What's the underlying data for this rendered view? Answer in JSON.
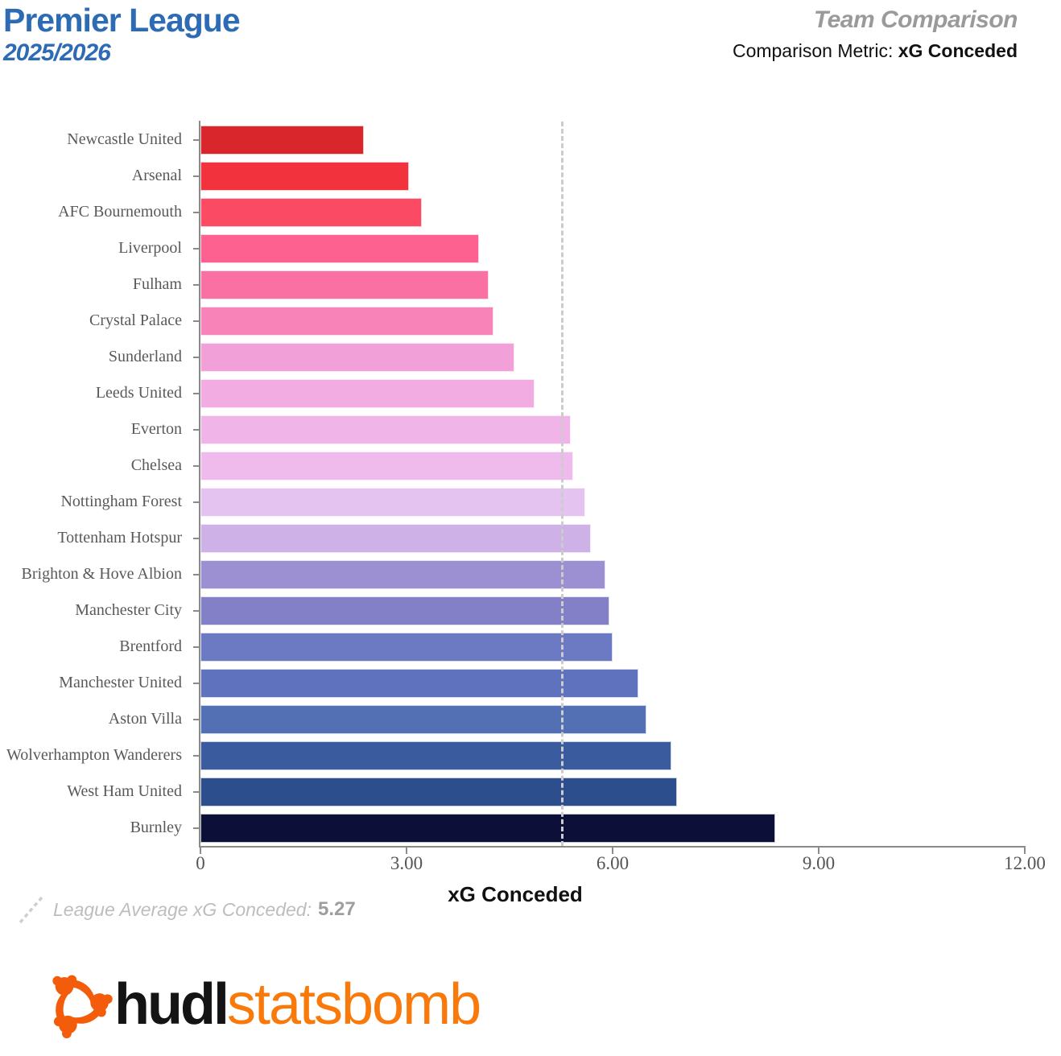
{
  "header": {
    "title": "Premier League",
    "season": "2025/2026",
    "right_title": "Team Comparison",
    "metric_label": "Comparison Metric:",
    "metric_value": "xG Conceded",
    "title_color": "#2D6CB5",
    "right_title_color": "#9A9A9A"
  },
  "chart_data": {
    "type": "bar",
    "orientation": "horizontal",
    "title": "Team Comparison",
    "xlabel": "xG Conceded",
    "xlim": [
      0,
      12
    ],
    "xticks": [
      0,
      3,
      6,
      9,
      12
    ],
    "xtick_labels": [
      "0",
      "3.00",
      "6.00",
      "9.00",
      "12.00"
    ],
    "league_average": 5.27,
    "grid": false,
    "categories": [
      "Newcastle United",
      "Arsenal",
      "AFC Bournemouth",
      "Liverpool",
      "Fulham",
      "Crystal Palace",
      "Sunderland",
      "Leeds United",
      "Everton",
      "Chelsea",
      "Nottingham Forest",
      "Tottenham Hotspur",
      "Brighton & Hove Albion",
      "Manchester City",
      "Brentford",
      "Manchester United",
      "Aston Villa",
      "Wolverhampton Wanderers",
      "West Ham United",
      "Burnley"
    ],
    "values": [
      2.38,
      3.03,
      3.22,
      4.05,
      4.2,
      4.26,
      4.57,
      4.86,
      5.39,
      5.43,
      5.6,
      5.68,
      5.89,
      5.95,
      6.0,
      6.38,
      6.49,
      6.86,
      6.94,
      8.37
    ],
    "bar_colors": [
      "#D9262C",
      "#F2333D",
      "#FB4A64",
      "#FC6190",
      "#FA70A3",
      "#F783B9",
      "#F2A0D8",
      "#F2ACE2",
      "#F1B4E8",
      "#EFBAEC",
      "#E5C3F0",
      "#CDB1E7",
      "#9C8FD2",
      "#8480C8",
      "#6C79C3",
      "#5F72BD",
      "#5470B5",
      "#3A5C9E",
      "#2C4E8C",
      "#0C1038"
    ]
  },
  "legend": {
    "label": "League Average xG Conceded:",
    "value": "5.27",
    "dash_color": "#CCCCCC"
  },
  "logo": {
    "text_black": "hudl",
    "text_orange": "statsbomb",
    "icon_color": "#F25C0A"
  }
}
